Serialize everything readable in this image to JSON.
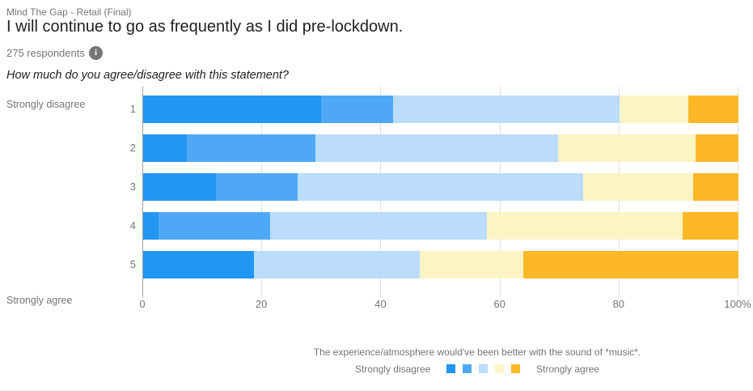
{
  "header": {
    "source": "Mind The Gap - Retail (Final)",
    "title": "I will continue to go as frequently as I did pre-lockdown.",
    "respondents": "275 respondents",
    "info_icon_glyph": "i",
    "question": "How much do you agree/disagree with this statement?"
  },
  "chart_data": {
    "type": "bar",
    "orientation": "horizontal",
    "stacked": true,
    "stacked_total": 100,
    "grid": true,
    "categories": [
      "1",
      "2",
      "3",
      "4",
      "5"
    ],
    "row_axis_top_label": "Strongly disagree",
    "row_axis_bottom_label": "Strongly agree",
    "xlim": [
      0,
      100
    ],
    "x_tick_values": [
      0,
      20,
      40,
      60,
      80,
      100
    ],
    "x_tick_labels": [
      "0",
      "20",
      "40",
      "60",
      "80",
      "100%"
    ],
    "series": [
      {
        "name": "1 - Strongly disagree",
        "color": "#2196F3",
        "values": [
          30.0,
          7.4,
          12.3,
          2.7,
          18.7
        ]
      },
      {
        "name": "2",
        "color": "#4FA8F5",
        "values": [
          12.0,
          21.7,
          13.7,
          18.7,
          0.0
        ]
      },
      {
        "name": "3",
        "color": "#BBDCFB",
        "values": [
          38.0,
          40.6,
          47.9,
          36.4,
          27.8
        ]
      },
      {
        "name": "4",
        "color": "#FDF4C6",
        "values": [
          11.6,
          23.1,
          18.5,
          32.9,
          17.4
        ]
      },
      {
        "name": "5 - Strongly agree",
        "color": "#FDB827",
        "values": [
          8.4,
          7.2,
          7.6,
          9.3,
          36.1
        ]
      }
    ],
    "legend_position": "bottom"
  },
  "footer": {
    "caption": "The experience/atmosphere would've been better with the sound of *music*.",
    "legend_left_label": "Strongly disagree",
    "legend_right_label": "Strongly agree"
  },
  "colors": {
    "axis_line": "#9e9e9e",
    "gridline": "#e0e0e0",
    "muted_text": "#757575",
    "title_text": "#212121"
  }
}
